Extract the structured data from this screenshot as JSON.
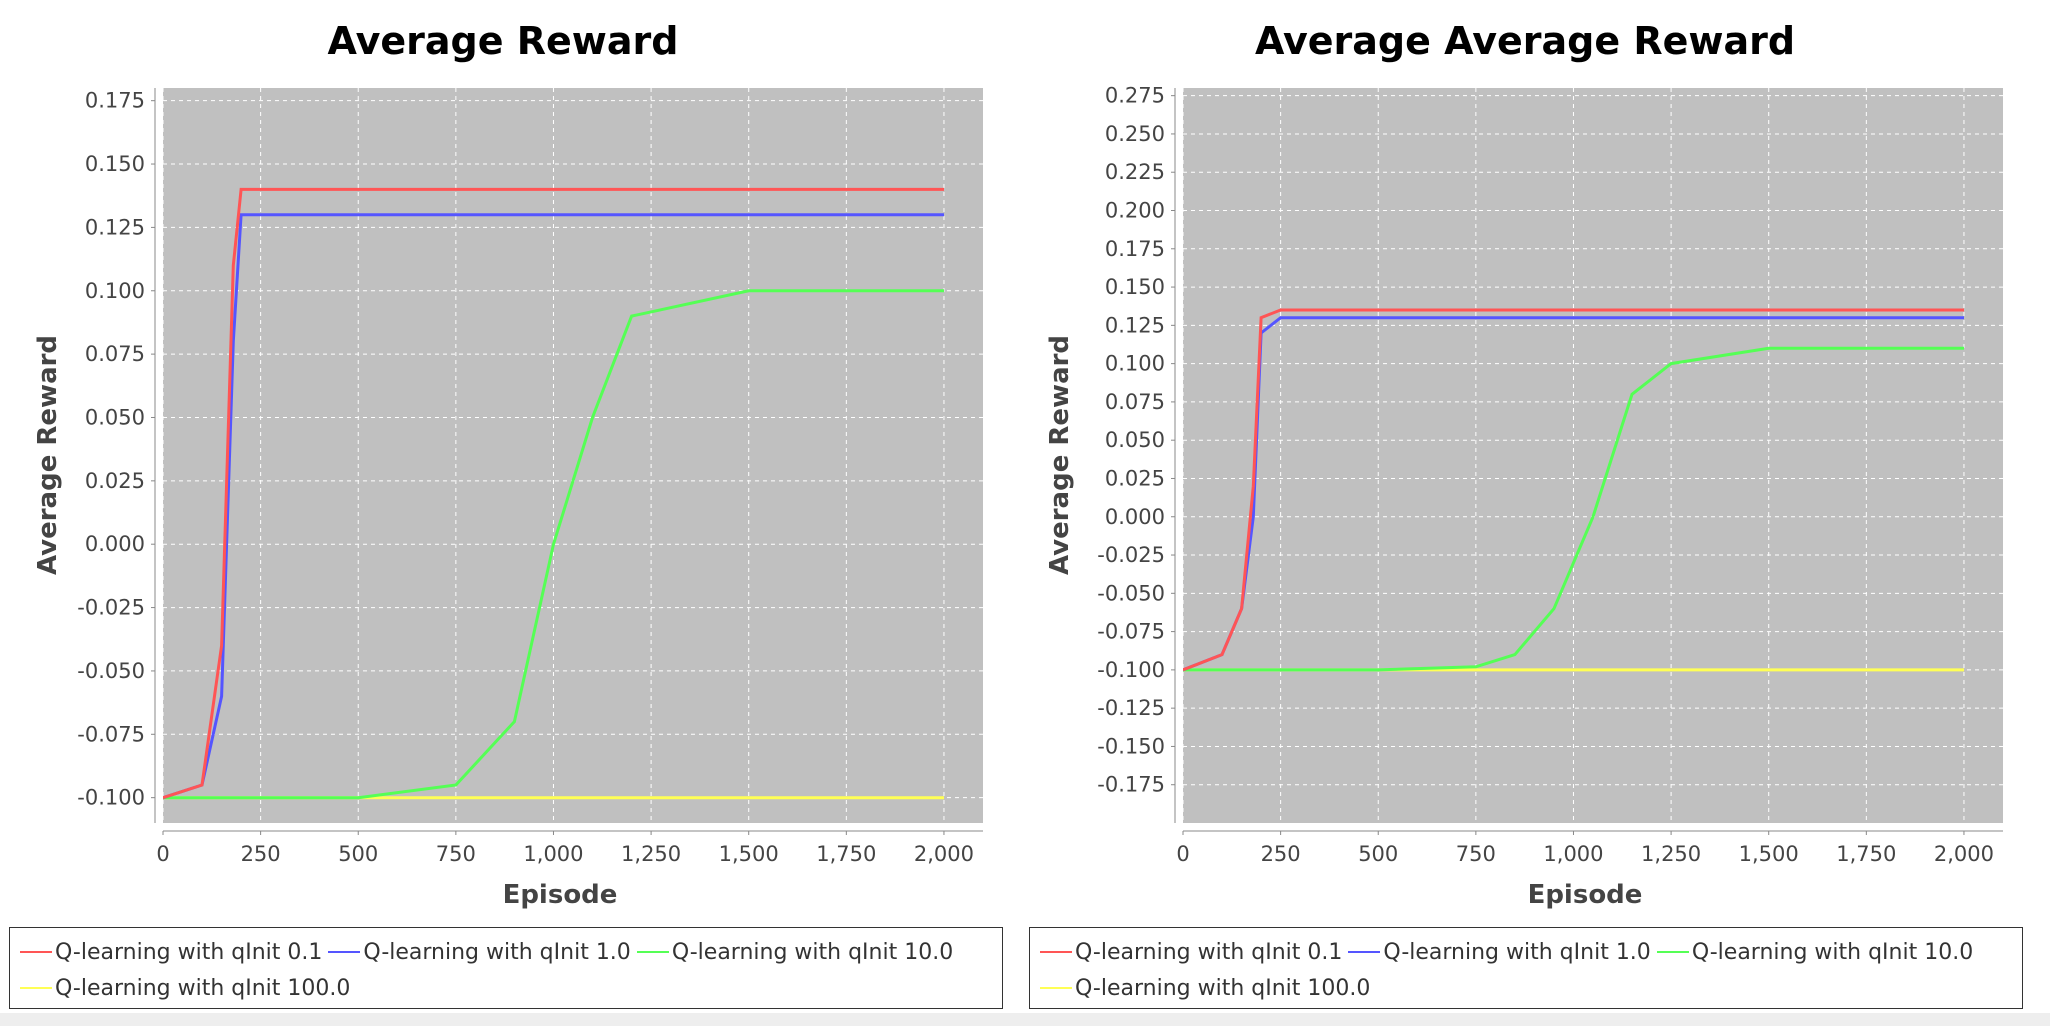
{
  "colors": {
    "plot_bg": "#c0c0c0",
    "grid": "#ffffff",
    "series": [
      "#ff5555",
      "#5555ff",
      "#55ff55",
      "#ffff55"
    ]
  },
  "chart_data": [
    {
      "type": "line",
      "title": "Average Reward",
      "xlabel": "Episode",
      "ylabel": "Average Reward",
      "xlim": [
        0,
        2100
      ],
      "ylim": [
        -0.11,
        0.18
      ],
      "xticks": [
        0,
        250,
        500,
        750,
        1000,
        1250,
        1500,
        1750,
        2000
      ],
      "xtick_labels": [
        "0",
        "250",
        "500",
        "750",
        "1,000",
        "1,250",
        "1,500",
        "1,750",
        "2,000"
      ],
      "yticks": [
        -0.1,
        -0.075,
        -0.05,
        -0.025,
        0.0,
        0.025,
        0.05,
        0.075,
        0.1,
        0.125,
        0.15,
        0.175
      ],
      "ytick_labels": [
        "-0.100",
        "-0.075",
        "-0.050",
        "-0.025",
        "0.000",
        "0.025",
        "0.050",
        "0.075",
        "0.100",
        "0.125",
        "0.150",
        "0.175"
      ],
      "grid": true,
      "legend": "bottom",
      "series": [
        {
          "name": "Q-learning with qInit 0.1",
          "x": [
            0,
            100,
            150,
            180,
            200,
            250,
            500,
            1000,
            1500,
            2000
          ],
          "y": [
            -0.1,
            -0.095,
            -0.04,
            0.11,
            0.14,
            0.14,
            0.14,
            0.14,
            0.14,
            0.14
          ]
        },
        {
          "name": "Q-learning with qInit 1.0",
          "x": [
            0,
            100,
            150,
            180,
            200,
            250,
            500,
            1000,
            1500,
            2000
          ],
          "y": [
            -0.1,
            -0.095,
            -0.06,
            0.08,
            0.13,
            0.13,
            0.13,
            0.13,
            0.13,
            0.13
          ]
        },
        {
          "name": "Q-learning with qInit 10.0",
          "x": [
            0,
            250,
            500,
            750,
            900,
            1000,
            1100,
            1200,
            1500,
            2000
          ],
          "y": [
            -0.1,
            -0.1,
            -0.1,
            -0.095,
            -0.07,
            0.0,
            0.05,
            0.09,
            0.1,
            0.1
          ]
        },
        {
          "name": "Q-learning with qInit 100.0",
          "x": [
            0,
            250,
            500,
            1000,
            1500,
            2000
          ],
          "y": [
            -0.1,
            -0.1,
            -0.1,
            -0.1,
            -0.1,
            -0.1
          ]
        }
      ]
    },
    {
      "type": "line",
      "title": "Average Average Reward",
      "xlabel": "Episode",
      "ylabel": "Average Reward",
      "xlim": [
        0,
        2100
      ],
      "ylim": [
        -0.2,
        0.28
      ],
      "xticks": [
        0,
        250,
        500,
        750,
        1000,
        1250,
        1500,
        1750,
        2000
      ],
      "xtick_labels": [
        "0",
        "250",
        "500",
        "750",
        "1,000",
        "1,250",
        "1,500",
        "1,750",
        "2,000"
      ],
      "yticks": [
        -0.175,
        -0.15,
        -0.125,
        -0.1,
        -0.075,
        -0.05,
        -0.025,
        0.0,
        0.025,
        0.05,
        0.075,
        0.1,
        0.125,
        0.15,
        0.175,
        0.2,
        0.225,
        0.25,
        0.275
      ],
      "ytick_labels": [
        "-0.175",
        "-0.150",
        "-0.125",
        "-0.100",
        "-0.075",
        "-0.050",
        "-0.025",
        "0.000",
        "0.025",
        "0.050",
        "0.075",
        "0.100",
        "0.125",
        "0.150",
        "0.175",
        "0.200",
        "0.225",
        "0.250",
        "0.275"
      ],
      "grid": true,
      "legend": "bottom",
      "series": [
        {
          "name": "Q-learning with qInit 0.1",
          "x": [
            0,
            100,
            150,
            180,
            200,
            250,
            500,
            1000,
            1500,
            2000
          ],
          "y": [
            -0.1,
            -0.09,
            -0.06,
            0.02,
            0.13,
            0.135,
            0.135,
            0.135,
            0.135,
            0.135
          ]
        },
        {
          "name": "Q-learning with qInit 1.0",
          "x": [
            0,
            100,
            150,
            180,
            200,
            250,
            500,
            1000,
            1500,
            2000
          ],
          "y": [
            -0.1,
            -0.09,
            -0.06,
            0.0,
            0.12,
            0.13,
            0.13,
            0.13,
            0.13,
            0.13
          ]
        },
        {
          "name": "Q-learning with qInit 10.0",
          "x": [
            0,
            250,
            500,
            750,
            850,
            950,
            1050,
            1100,
            1150,
            1250,
            1500,
            2000
          ],
          "y": [
            -0.1,
            -0.1,
            -0.1,
            -0.098,
            -0.09,
            -0.06,
            0.0,
            0.04,
            0.08,
            0.1,
            0.11,
            0.11
          ]
        },
        {
          "name": "Q-learning with qInit 100.0",
          "x": [
            0,
            250,
            500,
            1000,
            1500,
            2000
          ],
          "y": [
            -0.1,
            -0.1,
            -0.1,
            -0.1,
            -0.1,
            -0.1
          ]
        }
      ]
    }
  ]
}
